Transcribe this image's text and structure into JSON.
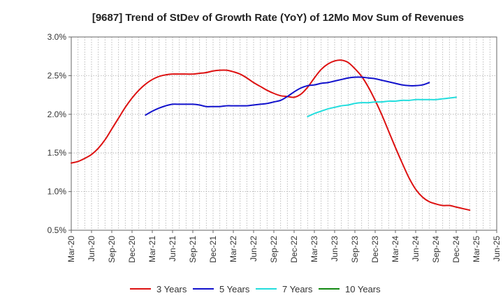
{
  "chart_data": {
    "type": "line",
    "title": "[9687]  Trend of StDev of Growth Rate (YoY) of 12Mo Mov Sum of Revenues",
    "xlabel": "",
    "ylabel": "",
    "ylim": [
      0.5,
      3.0
    ],
    "y_ticks": [
      {
        "value": 0.5,
        "label": "0.5%"
      },
      {
        "value": 1.0,
        "label": "1.0%"
      },
      {
        "value": 1.5,
        "label": "1.5%"
      },
      {
        "value": 2.0,
        "label": "2.0%"
      },
      {
        "value": 2.5,
        "label": "2.5%"
      },
      {
        "value": 3.0,
        "label": "3.0%"
      }
    ],
    "x_range": [
      0,
      63
    ],
    "x_ticks": [
      {
        "value": 0,
        "label": "Mar-20"
      },
      {
        "value": 3,
        "label": "Jun-20"
      },
      {
        "value": 6,
        "label": "Sep-20"
      },
      {
        "value": 9,
        "label": "Dec-20"
      },
      {
        "value": 12,
        "label": "Mar-21"
      },
      {
        "value": 15,
        "label": "Jun-21"
      },
      {
        "value": 18,
        "label": "Sep-21"
      },
      {
        "value": 21,
        "label": "Dec-21"
      },
      {
        "value": 24,
        "label": "Mar-22"
      },
      {
        "value": 27,
        "label": "Jun-22"
      },
      {
        "value": 30,
        "label": "Sep-22"
      },
      {
        "value": 33,
        "label": "Dec-22"
      },
      {
        "value": 36,
        "label": "Mar-23"
      },
      {
        "value": 39,
        "label": "Jun-23"
      },
      {
        "value": 42,
        "label": "Sep-23"
      },
      {
        "value": 45,
        "label": "Dec-23"
      },
      {
        "value": 48,
        "label": "Mar-24"
      },
      {
        "value": 51,
        "label": "Jun-24"
      },
      {
        "value": 54,
        "label": "Sep-24"
      },
      {
        "value": 57,
        "label": "Dec-24"
      },
      {
        "value": 60,
        "label": "Mar-25"
      },
      {
        "value": 63,
        "label": "Jun-25"
      }
    ],
    "grid": true,
    "legend_position": "bottom",
    "series": [
      {
        "name": "3 Years",
        "color": "#dd1111",
        "x_start": 0,
        "values": [
          1.37,
          1.39,
          1.43,
          1.48,
          1.56,
          1.67,
          1.81,
          1.95,
          2.09,
          2.21,
          2.31,
          2.39,
          2.45,
          2.49,
          2.51,
          2.52,
          2.52,
          2.52,
          2.52,
          2.53,
          2.54,
          2.56,
          2.57,
          2.57,
          2.55,
          2.52,
          2.47,
          2.41,
          2.36,
          2.31,
          2.27,
          2.24,
          2.23,
          2.22,
          2.26,
          2.35,
          2.47,
          2.58,
          2.65,
          2.69,
          2.7,
          2.67,
          2.59,
          2.49,
          2.35,
          2.18,
          1.99,
          1.78,
          1.57,
          1.37,
          1.18,
          1.03,
          0.93,
          0.87,
          0.84,
          0.82,
          0.82,
          0.8,
          0.78,
          0.76
        ]
      },
      {
        "name": "5 Years",
        "color": "#1111cc",
        "x_start": 11,
        "values": [
          1.99,
          2.04,
          2.08,
          2.11,
          2.13,
          2.13,
          2.13,
          2.13,
          2.12,
          2.1,
          2.1,
          2.1,
          2.11,
          2.11,
          2.11,
          2.11,
          2.12,
          2.13,
          2.14,
          2.16,
          2.18,
          2.23,
          2.29,
          2.34,
          2.37,
          2.38,
          2.4,
          2.41,
          2.43,
          2.45,
          2.47,
          2.48,
          2.48,
          2.47,
          2.46,
          2.44,
          2.42,
          2.4,
          2.38,
          2.37,
          2.37,
          2.38,
          2.41
        ]
      },
      {
        "name": "7 Years",
        "color": "#22dddd",
        "x_start": 35,
        "values": [
          1.97,
          2.01,
          2.04,
          2.07,
          2.09,
          2.11,
          2.12,
          2.14,
          2.15,
          2.15,
          2.16,
          2.16,
          2.17,
          2.17,
          2.18,
          2.18,
          2.19,
          2.19,
          2.19,
          2.19,
          2.2,
          2.21,
          2.22
        ]
      },
      {
        "name": "10 Years",
        "color": "#118811",
        "x_start": 0,
        "values": []
      }
    ]
  }
}
